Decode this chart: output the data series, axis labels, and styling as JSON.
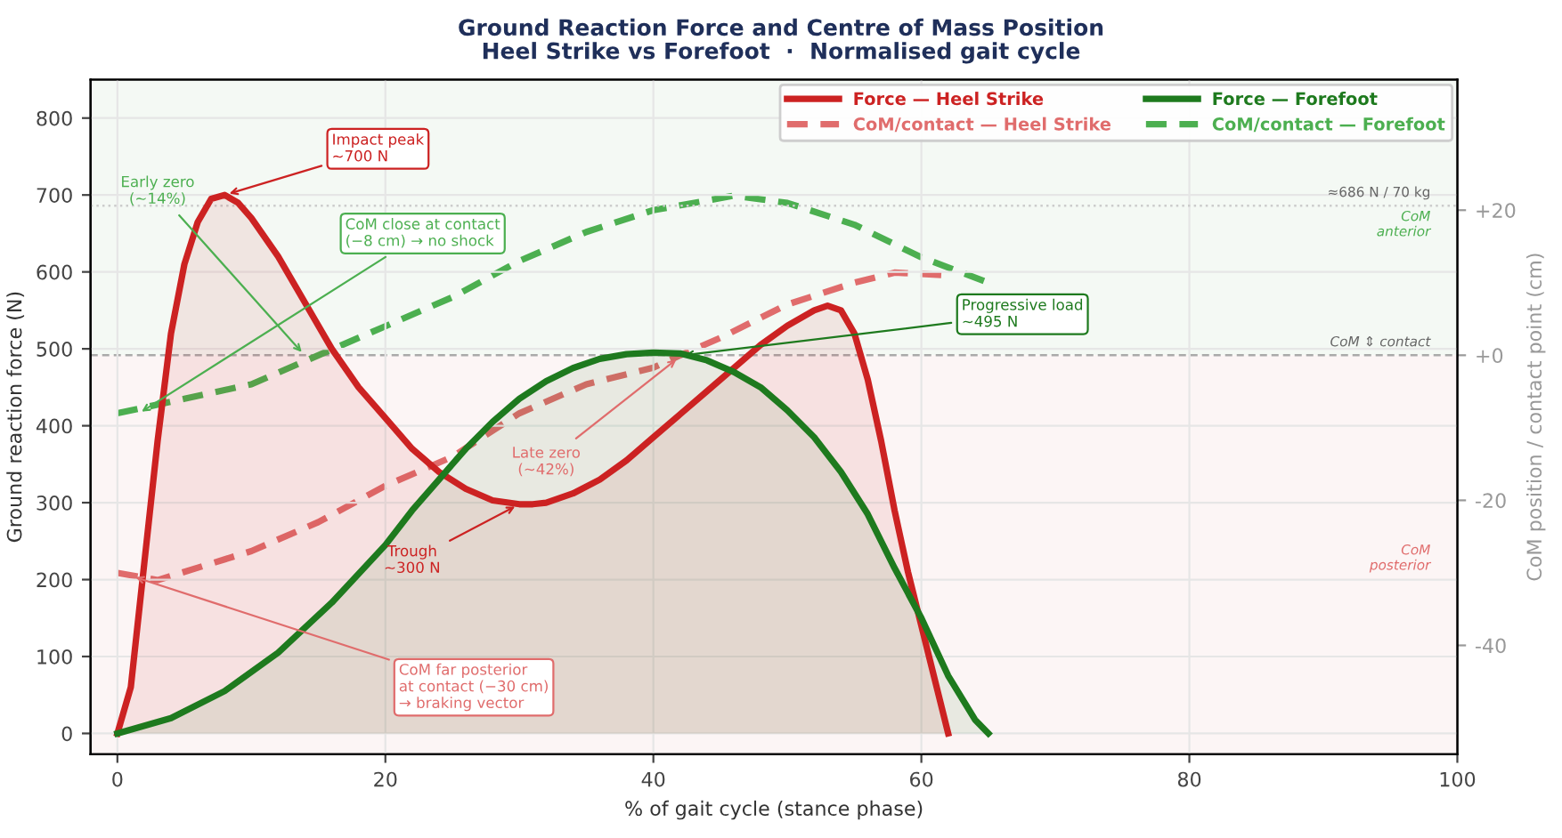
{
  "chart_data": {
    "type": "line",
    "title": "Ground Reaction Force and Centre of Mass Position",
    "subtitle": "Heel Strike vs Forefoot  ·  Normalised gait cycle",
    "xlabel": "% of gait cycle (stance phase)",
    "ylabel": "Ground reaction force (N)",
    "y2label": "CoM position / contact point (cm)",
    "xlim": [
      -2,
      100
    ],
    "xticks": [
      0,
      20,
      40,
      60,
      80,
      100
    ],
    "ylim": [
      -27,
      850
    ],
    "yticks": [
      0,
      100,
      200,
      300,
      400,
      500,
      600,
      700,
      800
    ],
    "y2lim": [
      -55,
      38
    ],
    "y2ticks": [
      -40,
      -20,
      {
        "value": 0,
        "label": "+0"
      },
      {
        "value": 20,
        "label": "+20"
      }
    ],
    "grid": true,
    "legend": "top right",
    "series": [
      {
        "name": "Force — Heel Strike",
        "type": "area",
        "color": "#cc2222",
        "line_style": "solid",
        "x": [
          0,
          1,
          2,
          3,
          4,
          5,
          6,
          7,
          8,
          9,
          10,
          12,
          14,
          16,
          18,
          20,
          22,
          24,
          26,
          28,
          30,
          31,
          32,
          34,
          36,
          38,
          40,
          42,
          44,
          46,
          48,
          50,
          52,
          53,
          54,
          55,
          56,
          57,
          58,
          59,
          60,
          61,
          62
        ],
        "values": [
          0,
          60,
          220,
          380,
          520,
          610,
          665,
          695,
          700,
          690,
          670,
          620,
          560,
          500,
          450,
          410,
          370,
          340,
          318,
          303,
          298,
          298,
          300,
          312,
          330,
          355,
          385,
          415,
          445,
          475,
          505,
          530,
          550,
          556,
          550,
          520,
          460,
          380,
          290,
          210,
          140,
          70,
          0
        ]
      },
      {
        "name": "Force — Forefoot",
        "type": "area",
        "color": "#1e7a1e",
        "line_style": "solid",
        "x": [
          0,
          4,
          8,
          12,
          16,
          20,
          22,
          24,
          26,
          28,
          30,
          32,
          34,
          36,
          38,
          40,
          42,
          44,
          46,
          48,
          50,
          52,
          54,
          56,
          58,
          60,
          62,
          64,
          65
        ],
        "values": [
          0,
          20,
          55,
          105,
          170,
          245,
          290,
          330,
          370,
          405,
          435,
          458,
          475,
          487,
          493,
          495,
          494,
          485,
          470,
          450,
          420,
          385,
          340,
          285,
          215,
          150,
          75,
          18,
          0
        ]
      },
      {
        "name": "CoM/contact — Heel Strike",
        "axis": "y2",
        "color": "#e06c6c",
        "line_style": "dashed",
        "x": [
          0,
          3,
          10,
          15,
          20,
          25,
          30,
          35,
          40,
          42,
          45,
          50,
          55,
          58,
          62
        ],
        "values": [
          -30,
          -31,
          -27,
          -23,
          -18,
          -14,
          -8,
          -4,
          -1.7,
          0,
          2.4,
          7,
          10,
          11.4,
          11
        ]
      },
      {
        "name": "CoM/contact — Forefoot",
        "axis": "y2",
        "color": "#4caf50",
        "line_style": "dashed",
        "x": [
          0,
          5,
          10,
          15,
          20,
          25,
          30,
          35,
          40,
          46,
          50,
          55,
          60,
          65
        ],
        "values": [
          -8,
          -6,
          -4,
          0,
          4,
          8,
          13,
          17,
          20,
          22,
          21,
          18,
          13.5,
          10
        ]
      }
    ],
    "bands": [
      {
        "axis": "y2",
        "from": 0,
        "to": 38,
        "color": "#f4f9f4"
      },
      {
        "axis": "y2",
        "from": -55,
        "to": 0,
        "color": "#fcf5f5"
      }
    ],
    "ref_lines": [
      {
        "axis": "y2",
        "value": 0,
        "label": "CoM ⇕ contact",
        "color": "#aaaaaa",
        "line_style": "dashed"
      },
      {
        "axis": "y",
        "value": 686,
        "label": "≈686 N / 70 kg",
        "color": "#cccccc",
        "line_style": "dotted"
      }
    ],
    "annotations": [
      {
        "text": "Impact peak\n~700 N",
        "x": 8,
        "y": 700
      },
      {
        "text": "Early zero\n(~14%)",
        "x": 14,
        "y": 491
      },
      {
        "text": "CoM close at contact\n(−8 cm) → no shock",
        "x": 1.5,
        "y": 415
      },
      {
        "text": "Progressive load\n~495 N",
        "x": 42,
        "y": 491
      },
      {
        "text": "Late zero\n(~42%)",
        "x": 42,
        "y": 490
      },
      {
        "text": "Trough\n~300 N",
        "x": 30,
        "y": 298
      },
      {
        "text": "CoM far posterior\nat contact (−30 cm)\n→ braking vector",
        "x": 1,
        "y": 205
      },
      "CoM\nanterior",
      "CoM\nposterior"
    ]
  }
}
